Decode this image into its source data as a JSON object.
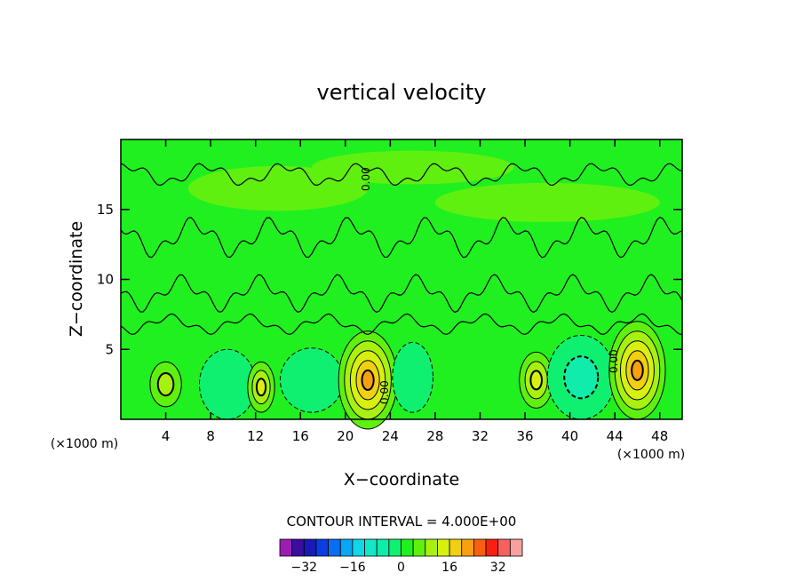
{
  "chart_data": {
    "type": "heatmap",
    "title": "vertical velocity",
    "xlabel": "X−coordinate",
    "ylabel": "Z−coordinate",
    "x_unit_left": "(×1000 m)",
    "x_unit_right": "(×1000 m)",
    "xlim": [
      0,
      50
    ],
    "ylim": [
      0,
      20
    ],
    "x_ticks": [
      4,
      8,
      12,
      16,
      20,
      24,
      28,
      32,
      36,
      40,
      44,
      48
    ],
    "y_ticks": [
      5,
      10,
      15
    ],
    "contour_interval_text": "CONTOUR INTERVAL = 4.000E+00",
    "contour_label": "0.00",
    "colorbar": {
      "levels": [
        -36,
        -32,
        -28,
        -24,
        -20,
        -16,
        -12,
        -8,
        -4,
        0,
        4,
        8,
        12,
        16,
        20,
        24,
        28,
        32,
        36
      ],
      "tick_values": [
        -32,
        -16,
        0,
        16,
        32
      ],
      "tick_labels": [
        "−32",
        "−16",
        "0",
        "16",
        "32"
      ],
      "colors": [
        "#9a1fb0",
        "#3a0fa0",
        "#1a1ab8",
        "#0a3ee0",
        "#0a6ef5",
        "#0aa6f5",
        "#10d8e8",
        "#10e8c8",
        "#10ecaa",
        "#10f070",
        "#20f020",
        "#60f010",
        "#a8f010",
        "#d8f010",
        "#f0d010",
        "#f8a010",
        "#f86010",
        "#f82010",
        "#f86060",
        "#f8a0a0"
      ]
    },
    "cells": [
      {
        "x": 4,
        "z": 2.5,
        "rx": 1.4,
        "rz": 1.6,
        "value": 8
      },
      {
        "x": 9.5,
        "z": 2.5,
        "rx": 2.5,
        "rz": 2.5,
        "value": -4
      },
      {
        "x": 12.5,
        "z": 2.3,
        "rx": 1.2,
        "rz": 1.8,
        "value": 12
      },
      {
        "x": 17,
        "z": 2.8,
        "rx": 2.8,
        "rz": 2.3,
        "value": -4
      },
      {
        "x": 22,
        "z": 2.8,
        "rx": 2.6,
        "rz": 3.5,
        "value": 20
      },
      {
        "x": 26,
        "z": 3,
        "rx": 1.8,
        "rz": 2.5,
        "value": -4
      },
      {
        "x": 37,
        "z": 2.8,
        "rx": 1.5,
        "rz": 2.0,
        "value": 12
      },
      {
        "x": 41,
        "z": 3,
        "rx": 3,
        "rz": 3,
        "value": -8
      },
      {
        "x": 46,
        "z": 3.5,
        "rx": 2.5,
        "rz": 3.5,
        "value": 20
      }
    ]
  }
}
